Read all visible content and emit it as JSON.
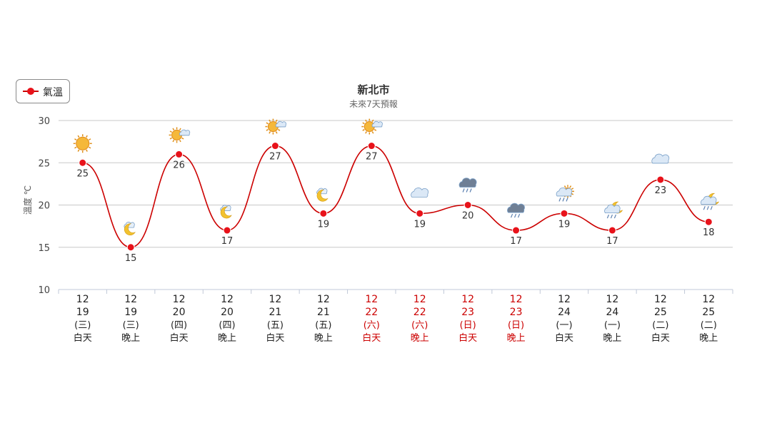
{
  "legend": {
    "label": "氣溫",
    "color": "#e8121a"
  },
  "chart_data": {
    "type": "line",
    "title": "新北市",
    "subtitle": "未來7天預報",
    "ylabel": "溫度 ℃",
    "ylim": [
      10,
      30
    ],
    "yticks": [
      "10",
      "15",
      "20",
      "25",
      "30"
    ],
    "grid": true,
    "legend_position": "top-left",
    "line_color": "#cc0000",
    "weekend_color": "#cc0000",
    "categories": [
      {
        "month": "12",
        "day": "19",
        "weekday": "(三)",
        "period": "白天",
        "weekend": false
      },
      {
        "month": "12",
        "day": "19",
        "weekday": "(三)",
        "period": "晚上",
        "weekend": false
      },
      {
        "month": "12",
        "day": "20",
        "weekday": "(四)",
        "period": "白天",
        "weekend": false
      },
      {
        "month": "12",
        "day": "20",
        "weekday": "(四)",
        "period": "晚上",
        "weekend": false
      },
      {
        "month": "12",
        "day": "21",
        "weekday": "(五)",
        "period": "白天",
        "weekend": false
      },
      {
        "month": "12",
        "day": "21",
        "weekday": "(五)",
        "period": "晚上",
        "weekend": false
      },
      {
        "month": "12",
        "day": "22",
        "weekday": "(六)",
        "period": "白天",
        "weekend": true
      },
      {
        "month": "12",
        "day": "22",
        "weekday": "(六)",
        "period": "晚上",
        "weekend": true
      },
      {
        "month": "12",
        "day": "23",
        "weekday": "(日)",
        "period": "白天",
        "weekend": true
      },
      {
        "month": "12",
        "day": "23",
        "weekday": "(日)",
        "period": "晚上",
        "weekend": true
      },
      {
        "month": "12",
        "day": "24",
        "weekday": "(一)",
        "period": "白天",
        "weekend": false
      },
      {
        "month": "12",
        "day": "24",
        "weekday": "(一)",
        "period": "晚上",
        "weekend": false
      },
      {
        "month": "12",
        "day": "25",
        "weekday": "(二)",
        "period": "白天",
        "weekend": false
      },
      {
        "month": "12",
        "day": "25",
        "weekday": "(二)",
        "period": "晚上",
        "weekend": false
      }
    ],
    "series": [
      {
        "name": "氣溫",
        "values": [
          25,
          15,
          26,
          17,
          27,
          19,
          27,
          19,
          20,
          17,
          19,
          17,
          23,
          18
        ]
      }
    ],
    "weather_icons": [
      "sunny-icon",
      "cloudy-moon-icon",
      "sun-cloud-icon",
      "cloudy-moon-icon",
      "sun-cloud-icon",
      "cloudy-moon-icon",
      "sun-cloud-icon",
      "cloud-icon",
      "rain-cloud-icon",
      "rain-cloud-icon",
      "cloud-sun-rain-icon",
      "cloud-moon-rain-icon",
      "cloud-icon",
      "cloud-moon-rain-icon"
    ]
  }
}
